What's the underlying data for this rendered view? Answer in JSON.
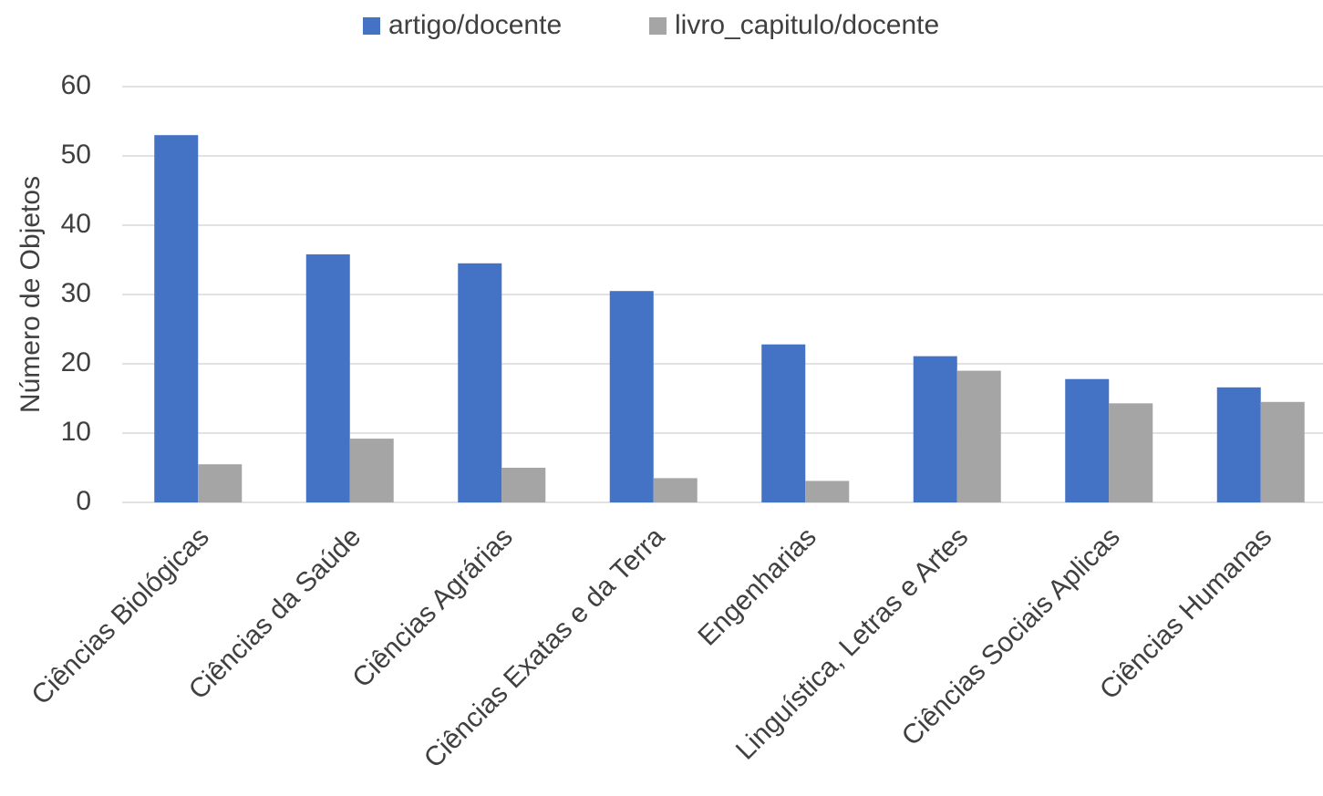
{
  "chart_data": {
    "type": "bar",
    "ylabel": "Número de Objetos",
    "categories": [
      "Ciências Biológicas",
      "Ciências da Saúde",
      "Ciências Agrárias",
      "Ciências Exatas e da Terra",
      "Engenharias",
      "Linguística, Letras e Artes",
      "Ciências Sociais Aplicas",
      "Ciências Humanas"
    ],
    "series": [
      {
        "name": "artigo/docente",
        "color": "#4472c4",
        "values": [
          53,
          35.8,
          34.5,
          30.5,
          22.8,
          21.1,
          17.8,
          16.6
        ]
      },
      {
        "name": "livro_capitulo/docente",
        "color": "#a5a5a5",
        "values": [
          5.5,
          9.2,
          5.0,
          3.5,
          3.1,
          19.0,
          14.3,
          14.5
        ]
      }
    ],
    "ylim": [
      0,
      60
    ],
    "yticks": [
      0,
      10,
      20,
      30,
      40,
      50,
      60
    ],
    "grid": true,
    "legend": "top"
  }
}
